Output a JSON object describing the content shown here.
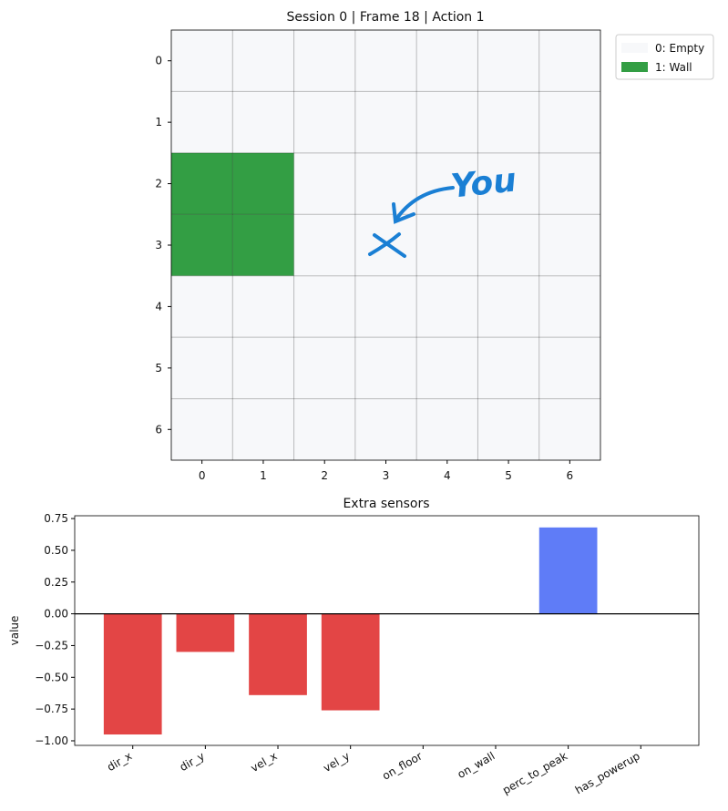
{
  "chart_data": [
    {
      "type": "heatmap",
      "title": "Session 0 | Frame 18 | Action 1",
      "values": [
        [
          0,
          0,
          0,
          0,
          0,
          0,
          0
        ],
        [
          0,
          0,
          0,
          0,
          0,
          0,
          0
        ],
        [
          1,
          1,
          0,
          0,
          0,
          0,
          0
        ],
        [
          1,
          1,
          0,
          0,
          0,
          0,
          0
        ],
        [
          0,
          0,
          0,
          0,
          0,
          0,
          0
        ],
        [
          0,
          0,
          0,
          0,
          0,
          0,
          0
        ],
        [
          0,
          0,
          0,
          0,
          0,
          0,
          0
        ]
      ],
      "legend": [
        {
          "label": "0: Empty",
          "color": "#f7f8fa"
        },
        {
          "label": "1: Wall",
          "color": "#339e44"
        }
      ],
      "xlim": [
        -0.5,
        6.5
      ],
      "ylim": [
        6.5,
        -0.5
      ],
      "xticks": [
        0,
        1,
        2,
        3,
        4,
        5,
        6
      ],
      "yticks": [
        0,
        1,
        2,
        3,
        4,
        5,
        6
      ],
      "grid": true,
      "annotation": "You"
    },
    {
      "type": "bar",
      "title": "Extra sensors",
      "ylabel": "value",
      "categories": [
        "dir_x",
        "dir_y",
        "vel_x",
        "vel_y",
        "on_floor",
        "on_wall",
        "perc_to_peak",
        "has_powerup"
      ],
      "values": [
        -0.95,
        -0.3,
        -0.64,
        -0.76,
        0,
        0,
        0.68,
        0
      ],
      "negative_color": "#e34545",
      "positive_color": "#5f7cf7",
      "ylim": [
        -1.036,
        0.772
      ],
      "yticks": [
        {
          "value": -1,
          "label": "−1.00"
        },
        {
          "value": -0.75,
          "label": "−0.75"
        },
        {
          "value": -0.5,
          "label": "−0.50"
        },
        {
          "value": -0.25,
          "label": "−0.25"
        },
        {
          "value": 0,
          "label": "0.00"
        },
        {
          "value": 0.25,
          "label": "0.25"
        },
        {
          "value": 0.5,
          "label": "0.50"
        },
        {
          "value": 0.75,
          "label": "0.75"
        }
      ]
    }
  ]
}
